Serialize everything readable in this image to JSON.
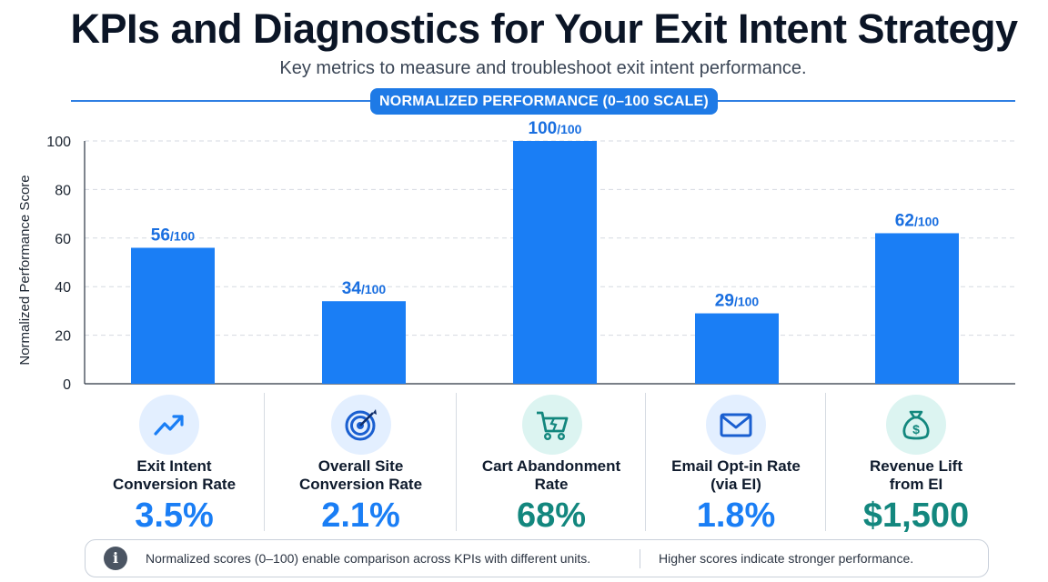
{
  "header": {
    "title": "KPIs and Diagnostics for Your Exit Intent Strategy",
    "subtitle": "Key metrics to measure and troubleshoot exit intent performance.",
    "scale_badge": "NORMALIZED PERFORMANCE (0–100 SCALE)"
  },
  "chart_data": {
    "type": "bar",
    "ylabel": "Normalized Performance Score",
    "ylim": [
      0,
      100
    ],
    "yticks": [
      0,
      20,
      40,
      60,
      80,
      100
    ],
    "grid": true,
    "value_suffix": "/100",
    "bar_color": "#1a7ef5",
    "categories": [
      "Exit Intent Conversion Rate",
      "Overall Site Conversion Rate",
      "Cart Abandonment Rate",
      "Email Opt-in Rate (via EI)",
      "Revenue Lift from EI"
    ],
    "values": [
      56,
      34,
      100,
      29,
      62
    ]
  },
  "kpis": [
    {
      "label_line1": "Exit Intent",
      "label_line2": "Conversion Rate",
      "value": "3.5%",
      "icon": "trend-up-icon",
      "value_color": "#1a7ef5",
      "circle_color": "#e3efff"
    },
    {
      "label_line1": "Overall Site",
      "label_line2": "Conversion Rate",
      "value": "2.1%",
      "icon": "target-icon",
      "value_color": "#1a7ef5",
      "circle_color": "#e3efff"
    },
    {
      "label_line1": "Cart Abandonment",
      "label_line2": "Rate",
      "value": "68%",
      "icon": "broken-cart-icon",
      "value_color": "#13877e",
      "circle_color": "#dcf4f1"
    },
    {
      "label_line1": "Email Opt-in Rate",
      "label_line2": "(via EI)",
      "value": "1.8%",
      "icon": "envelope-icon",
      "value_color": "#1a7ef5",
      "circle_color": "#e3efff"
    },
    {
      "label_line1": "Revenue Lift",
      "label_line2": "from EI",
      "value": "$1,500",
      "icon": "money-bag-icon",
      "value_color": "#13877e",
      "circle_color": "#dcf4f1"
    }
  ],
  "footer": {
    "note_left": "Normalized scores (0–100) enable comparison across KPIs with different units.",
    "note_right": "Higher scores indicate stronger performance."
  }
}
